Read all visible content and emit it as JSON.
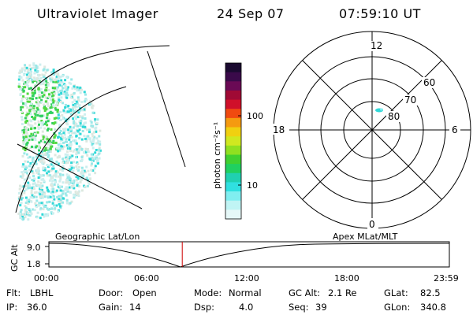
{
  "header": {
    "title": "Ultraviolet Imager",
    "date": "24 Sep 07",
    "time": "07:59:10 UT"
  },
  "colorbar": {
    "unit_label": "photon cm⁻²s⁻¹",
    "ticks": [
      "100",
      "10"
    ],
    "colors": [
      "#1a0a30",
      "#3a0a4a",
      "#6a0a55",
      "#a00a35",
      "#d0102a",
      "#f04a10",
      "#f59a10",
      "#f0d010",
      "#d0e820",
      "#90e020",
      "#40d030",
      "#20d060",
      "#20d0b0",
      "#30e0e0",
      "#80eef0",
      "#c0f4f4",
      "#e6f8f8"
    ]
  },
  "polar": {
    "mlt_labels": {
      "top": "12",
      "left": "18",
      "right": "6",
      "bottom": "0"
    },
    "lat_labels": [
      "60",
      "70",
      "80"
    ]
  },
  "timeline": {
    "ylabel": "GC Alt",
    "ymax": "9.0",
    "ymin": "1.8",
    "left_label": "Geographic Lat/Lon",
    "right_label": "Apex MLat/MLT",
    "x_ticks": [
      "00:00",
      "06:00",
      "12:00",
      "18:00",
      "23:59"
    ],
    "marker_time_fraction": 0.333
  },
  "info": {
    "flt": {
      "label": "Flt:",
      "value": "LBHL"
    },
    "ip": {
      "label": "IP:",
      "value": "36.0"
    },
    "door": {
      "label": "Door:",
      "value": "Open"
    },
    "gain": {
      "label": "Gain:",
      "value": "14"
    },
    "mode": {
      "label": "Mode:",
      "value": "Normal"
    },
    "dsp": {
      "label": "Dsp:",
      "value": "4.0"
    },
    "gcalt": {
      "label": "GC Alt:",
      "value": "2.1 Re"
    },
    "seq": {
      "label": "Seq:",
      "value": "39"
    },
    "glat": {
      "label": "GLat:",
      "value": "82.5"
    },
    "glon": {
      "label": "GLon:",
      "value": "340.8"
    }
  }
}
